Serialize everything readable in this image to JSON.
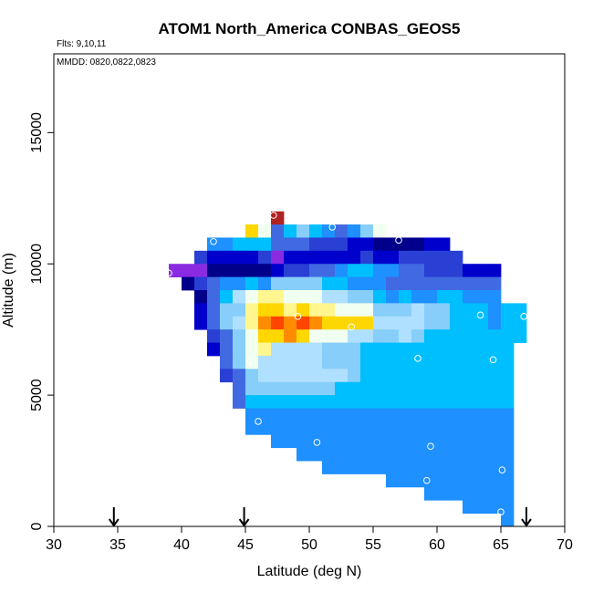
{
  "chart_data": {
    "type": "heatmap",
    "title": "ATOM1 North_America CONBAS_GEOS5",
    "subtitle_flights": "Flts: 9,10,11",
    "subtitle_dates": "MMDD: 0820,0822,0823",
    "xlabel": "Latitude (deg N)",
    "ylabel": "Altitude (m)",
    "xlim": [
      30,
      70
    ],
    "ylim": [
      0,
      18000
    ],
    "xticks": [
      30,
      35,
      40,
      45,
      50,
      55,
      60,
      65,
      70
    ],
    "yticks": [
      0,
      5000,
      10000,
      15000
    ],
    "cell_width_deg": 1,
    "cell_height_m": 500,
    "colors": {
      "P": "#8a2be2",
      "N": "#00008b",
      "K": "#0000cd",
      "B": "#2a3fd4",
      "R": "#4169e1",
      "D": "#1e90ff",
      "S": "#00bfff",
      "L": "#87cefa",
      "C": "#b0e0ff",
      "W": "#f0fff0",
      "Y": "#fff68f",
      "G": "#ffd700",
      "O": "#ff8c00",
      "F": "#ff4500",
      "X": "#b22222"
    },
    "rows": [
      {
        "alt": 11500,
        "lat_start": 47,
        "cells": "X"
      },
      {
        "alt": 11000,
        "lat_start": 45,
        "cells": "GWRSLSDRDLW"
      },
      {
        "alt": 10500,
        "lat_start": 42,
        "cells": "DDSSSRRRBBBKKNNNNKK"
      },
      {
        "alt": 10000,
        "lat_start": 41,
        "cells": "BKKKKBPKKKKKKBKKBBBBB"
      },
      {
        "alt": 9500,
        "lat_start": 39,
        "cells": "PPPNNNNNKBBRRDSSDDRRBBBKKK"
      },
      {
        "alt": 9000,
        "lat_start": 40,
        "cells": "NBRDDSDLLLLSSDDDRRRRRRRRR"
      },
      {
        "alt": 8500,
        "lat_start": 41,
        "cells": "NRSCWYYWWWCCLLSDSDDSSDDD"
      },
      {
        "alt": 8000,
        "lat_start": 41,
        "cells": "KRLLYGGYGYYWWWLLLCLLSSSDSS"
      },
      {
        "alt": 7500,
        "lat_start": 41,
        "cells": "KRLCYOFOFOGGGGCCCCLLSSSDSS"
      },
      {
        "alt": 7000,
        "lat_start": 42,
        "cells": "BRLWGGOGWWWCCLLCLSSSSSSSS"
      },
      {
        "alt": 6500,
        "lat_start": 42,
        "cells": "KRLWYCCCCLLLSSSSSSSSSSSS"
      },
      {
        "alt": 6000,
        "lat_start": 43,
        "cells": "RLWCCCCCLLLSSSSSSSSSSSS"
      },
      {
        "alt": 5500,
        "lat_start": 43,
        "cells": "BRLCCCCCCCLSSSSSSSSSSSS"
      },
      {
        "alt": 5000,
        "lat_start": 44,
        "cells": "RLLLLLLLSSSSSSSSSSSSSS"
      },
      {
        "alt": 4500,
        "lat_start": 44,
        "cells": "RSSSSSSSSSSSSSSSSSSSSS"
      },
      {
        "alt": 4000,
        "lat_start": 45,
        "cells": "DDDDDDDDDDDDDDDDDDDDD"
      },
      {
        "alt": 3500,
        "lat_start": 45,
        "cells": "DDDDDDDDDDDDDDDDDDDDD"
      },
      {
        "alt": 3000,
        "lat_start": 47,
        "cells": "DDDDDDDDDDDDDDDDDDD"
      },
      {
        "alt": 2500,
        "lat_start": 49,
        "cells": "DDDDDDDDDDDDDDDDD"
      },
      {
        "alt": 2000,
        "lat_start": 51,
        "cells": "DDDDDDDDDDDDDDD"
      },
      {
        "alt": 1500,
        "lat_start": 56,
        "cells": "DDDDDDDDDD"
      },
      {
        "alt": 1000,
        "lat_start": 59,
        "cells": "DDDDDDD"
      },
      {
        "alt": 500,
        "lat_start": 62,
        "cells": "DDDD"
      },
      {
        "alt": 0,
        "lat_start": 65,
        "cells": "D"
      }
    ],
    "samples": [
      {
        "lat": 47.2,
        "alt": 11850
      },
      {
        "lat": 51.8,
        "alt": 11400
      },
      {
        "lat": 42.5,
        "alt": 10850
      },
      {
        "lat": 57.0,
        "alt": 10900
      },
      {
        "lat": 39.0,
        "alt": 9650
      },
      {
        "lat": 49.1,
        "alt": 8000
      },
      {
        "lat": 63.4,
        "alt": 8050
      },
      {
        "lat": 66.8,
        "alt": 8000
      },
      {
        "lat": 53.3,
        "alt": 7600
      },
      {
        "lat": 45.4,
        "alt": 6300
      },
      {
        "lat": 58.5,
        "alt": 6400
      },
      {
        "lat": 64.4,
        "alt": 6350
      },
      {
        "lat": 46.0,
        "alt": 4000
      },
      {
        "lat": 50.6,
        "alt": 3200
      },
      {
        "lat": 59.5,
        "alt": 3050
      },
      {
        "lat": 65.1,
        "alt": 2150
      },
      {
        "lat": 59.2,
        "alt": 1750
      },
      {
        "lat": 65.0,
        "alt": 550
      }
    ],
    "arrows_lat": [
      34.7,
      44.9,
      67.0
    ]
  }
}
